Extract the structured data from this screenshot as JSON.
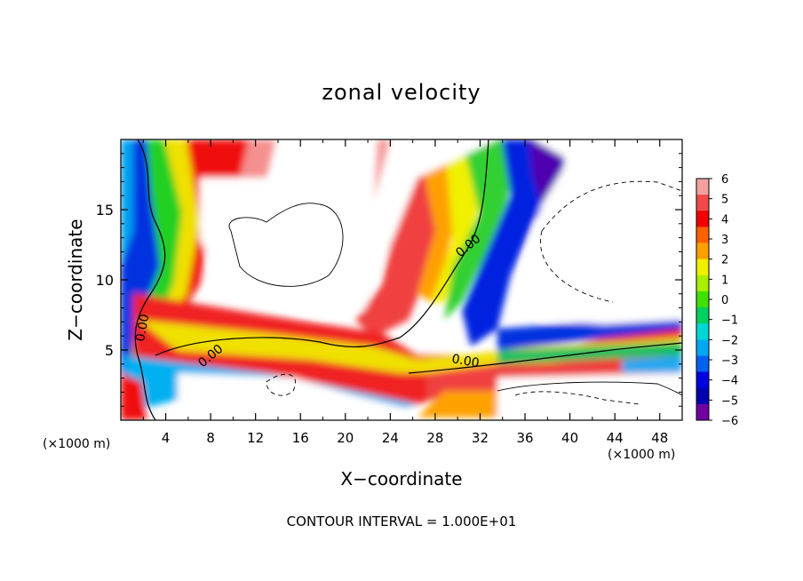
{
  "chart_data": {
    "type": "heatmap",
    "title": "zonal velocity",
    "xlabel": "X−coordinate",
    "ylabel": "Z−coordinate",
    "x_unit_left": "(×1000 m)",
    "x_unit_right": "(×1000 m)",
    "xlim": [
      0,
      50
    ],
    "ylim": [
      0,
      20
    ],
    "x_ticks": [
      4,
      8,
      12,
      16,
      20,
      24,
      28,
      32,
      36,
      40,
      44,
      48
    ],
    "y_ticks": [
      5,
      10,
      15
    ],
    "colorbar": {
      "ticks": [
        6,
        5,
        4,
        3,
        2,
        1,
        0,
        -1,
        -2,
        -3,
        -4,
        -5,
        -6
      ],
      "tick_labels": [
        "6",
        "5",
        "4",
        "3",
        "2",
        "1",
        "0",
        "−1",
        "−2",
        "−3",
        "−4",
        "−5",
        "−6"
      ],
      "colors_top_to_bottom": [
        "#f5a0a0",
        "#f24a4a",
        "#f00000",
        "#ff6000",
        "#ffa000",
        "#f0f000",
        "#a8f000",
        "#40e000",
        "#00d060",
        "#00d8d8",
        "#00a8f0",
        "#0060f0",
        "#0000e0",
        "#0000b0",
        "#7000a0"
      ]
    },
    "contour_labels": [
      "0.00",
      "0.00",
      "0.00",
      "0.00"
    ],
    "footer": "CONTOUR INTERVAL = 1.000E+01"
  }
}
